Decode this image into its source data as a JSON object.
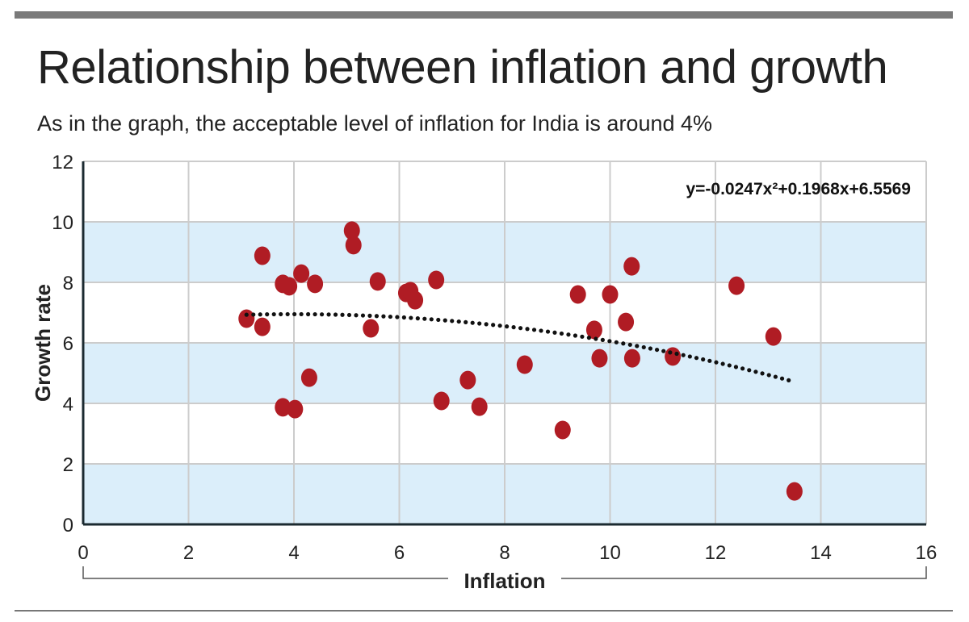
{
  "chart_data": {
    "type": "scatter",
    "title": "Relationship between inflation and growth",
    "subtitle": "As in the graph, the acceptable level of inflation for India is around 4%",
    "xlabel": "Inflation",
    "ylabel": "Growth rate",
    "xlim": [
      0,
      16
    ],
    "ylim": [
      0,
      12
    ],
    "xticks": [
      0,
      2,
      4,
      6,
      8,
      10,
      12,
      14,
      16
    ],
    "yticks": [
      0,
      2,
      4,
      6,
      8,
      10,
      12
    ],
    "grid": true,
    "alternating_bands": true,
    "colors": {
      "points": "#b01c24",
      "band": "#dbeefa",
      "trend": "#111111",
      "grid": "#cccccc"
    },
    "trendline": {
      "type": "polynomial-2",
      "equation": "y=-0.0247x²+0.1968x+6.5569",
      "coefficients": {
        "a": -0.0247,
        "b": 0.1968,
        "c": 6.5569
      },
      "x_range": [
        3.1,
        13.5
      ]
    },
    "points": [
      [
        3.1,
        6.8
      ],
      [
        3.4,
        8.88
      ],
      [
        3.4,
        6.53
      ],
      [
        3.79,
        7.95
      ],
      [
        3.91,
        7.87
      ],
      [
        4.14,
        8.29
      ],
      [
        4.4,
        7.95
      ],
      [
        4.29,
        4.85
      ],
      [
        3.79,
        3.87
      ],
      [
        4.02,
        3.81
      ],
      [
        5.1,
        9.71
      ],
      [
        5.13,
        9.23
      ],
      [
        5.59,
        8.03
      ],
      [
        5.46,
        6.48
      ],
      [
        6.13,
        7.65
      ],
      [
        6.21,
        7.71
      ],
      [
        6.3,
        7.41
      ],
      [
        6.7,
        8.08
      ],
      [
        6.8,
        4.08
      ],
      [
        7.3,
        4.77
      ],
      [
        7.52,
        3.89
      ],
      [
        8.38,
        5.28
      ],
      [
        9.1,
        3.12
      ],
      [
        9.39,
        7.6
      ],
      [
        9.7,
        6.43
      ],
      [
        9.8,
        5.49
      ],
      [
        10.0,
        7.6
      ],
      [
        10.41,
        8.53
      ],
      [
        10.3,
        6.69
      ],
      [
        10.42,
        5.49
      ],
      [
        11.19,
        5.55
      ],
      [
        12.4,
        7.89
      ],
      [
        13.1,
        6.21
      ],
      [
        13.5,
        1.09
      ]
    ]
  }
}
